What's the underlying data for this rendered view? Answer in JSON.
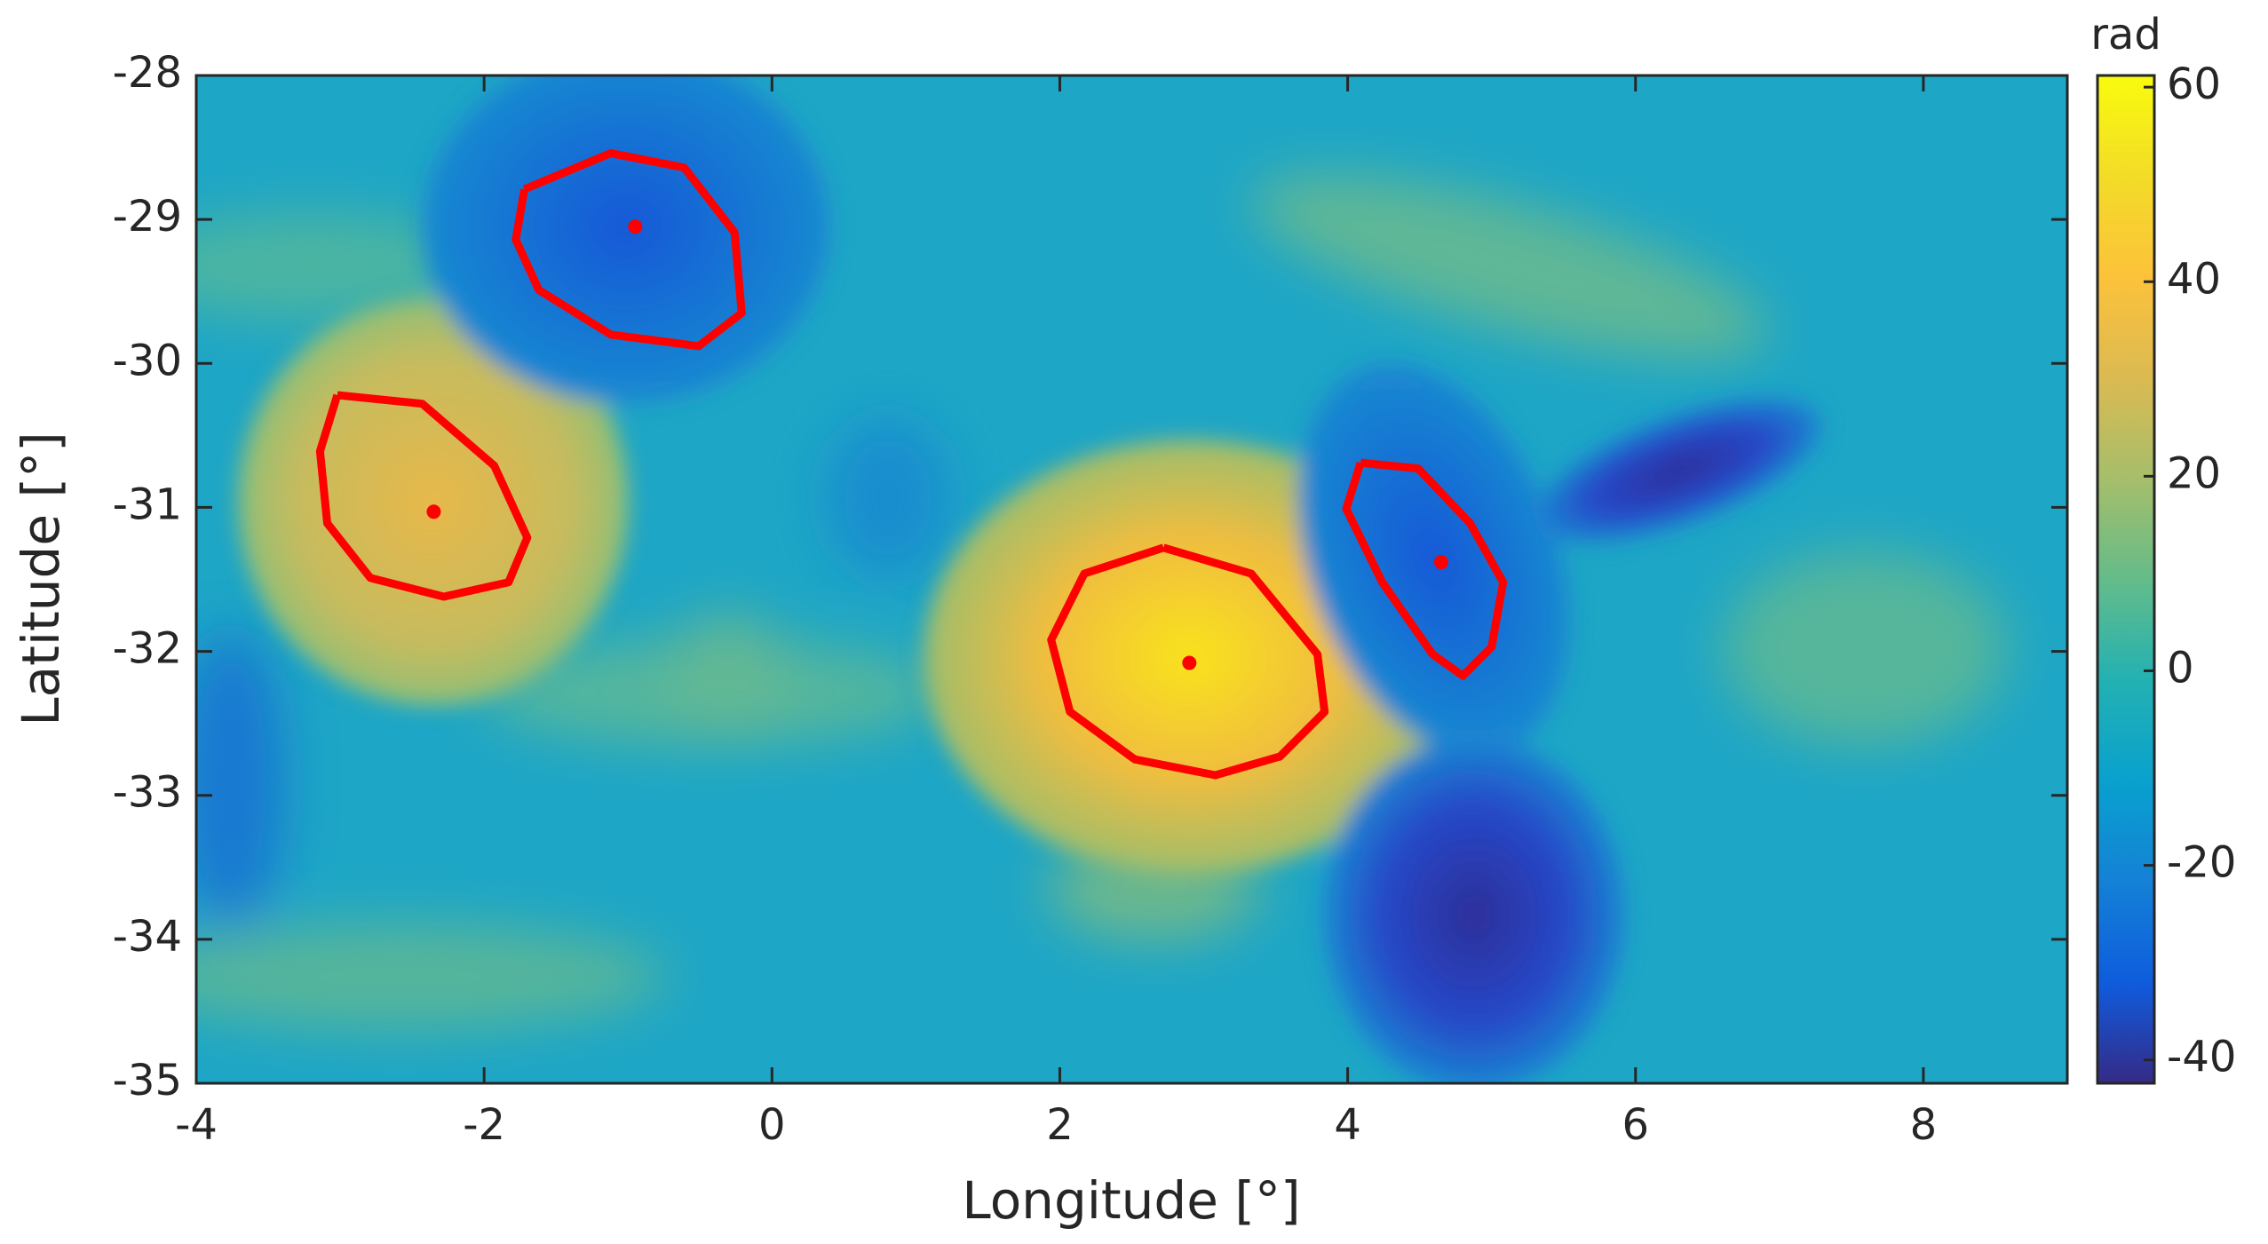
{
  "chart_data": {
    "type": "line",
    "xlabel": "Longitude [°]",
    "ylabel": "Latitude [°]",
    "xlim": [
      -4,
      9
    ],
    "ylim": [
      -35,
      -28
    ],
    "xticks": [
      -4,
      -2,
      0,
      2,
      4,
      6,
      8
    ],
    "yticks": [
      -35,
      -34,
      -33,
      -32,
      -31,
      -30,
      -29,
      -28
    ],
    "series": [
      {
        "color": "#ff0000",
        "x": [
          -1.72,
          -1.12,
          -0.61,
          -0.26,
          -0.21,
          -0.51,
          -1.12,
          -1.62,
          -1.78,
          -1.72
        ],
        "y": [
          -28.79,
          -28.54,
          -28.64,
          -29.09,
          -29.65,
          -29.88,
          -29.8,
          -29.49,
          -29.14,
          -28.79
        ]
      },
      {
        "color": "#ff0000",
        "x": [
          -3.02,
          -2.43,
          -1.93,
          -1.7,
          -1.83,
          -2.28,
          -2.79,
          -3.09,
          -3.14,
          -3.02
        ],
        "y": [
          -30.22,
          -30.28,
          -30.71,
          -31.21,
          -31.52,
          -31.62,
          -31.49,
          -31.11,
          -30.61,
          -30.22
        ]
      },
      {
        "color": "#ff0000",
        "x": [
          2.72,
          3.33,
          3.79,
          3.84,
          3.53,
          3.08,
          2.52,
          2.07,
          1.94,
          2.17,
          2.72
        ],
        "y": [
          -31.28,
          -31.46,
          -32.02,
          -32.42,
          -32.73,
          -32.86,
          -32.75,
          -32.42,
          -31.92,
          -31.46,
          -31.28
        ]
      },
      {
        "color": "#ff0000",
        "x": [
          4.09,
          4.49,
          4.85,
          5.08,
          5.0,
          4.8,
          4.59,
          4.24,
          3.99,
          4.09
        ],
        "y": [
          -30.69,
          -30.73,
          -31.11,
          -31.52,
          -31.97,
          -32.17,
          -32.02,
          -31.52,
          -31.01,
          -30.69
        ]
      }
    ],
    "centers": {
      "color": "#ff0000",
      "x": [
        -0.95,
        -2.35,
        2.9,
        4.65
      ],
      "y": [
        -29.05,
        -31.03,
        -32.08,
        -31.38
      ]
    },
    "colorbar": {
      "label": "rad",
      "lim": [
        -42.4,
        61.2
      ],
      "ticks": [
        -40,
        -20,
        0,
        20,
        40,
        60
      ]
    }
  }
}
